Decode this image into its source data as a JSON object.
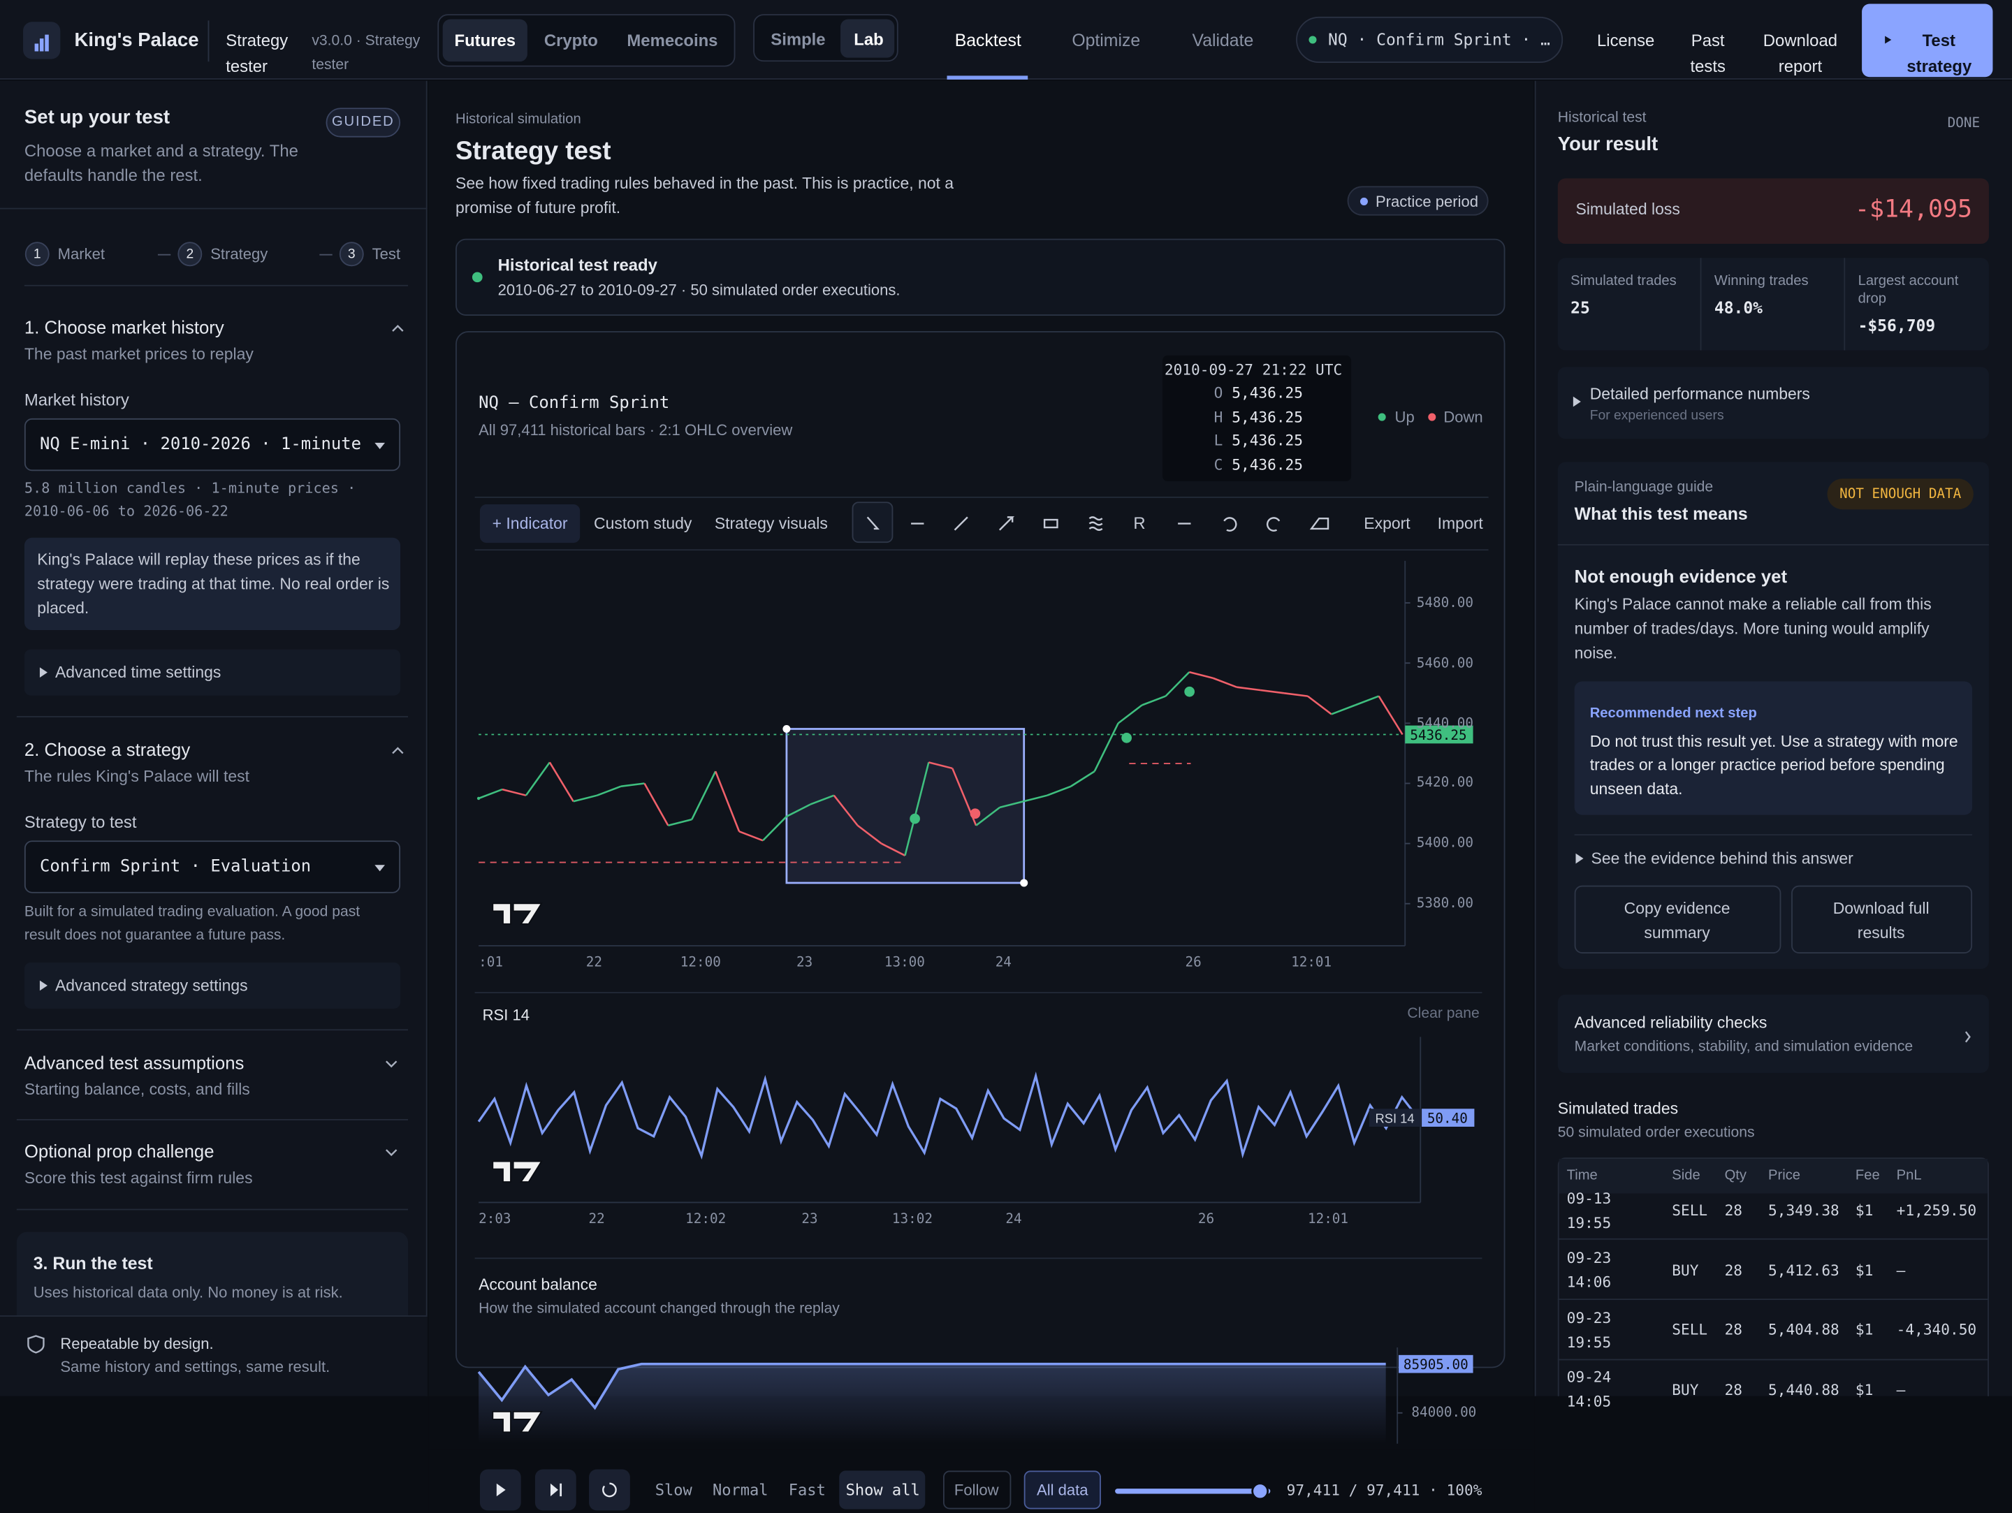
{
  "header": {
    "brand": "King's Palace",
    "product": "Strategy tester",
    "version": "v3.0.0 · Strategy tester",
    "markets": [
      "Futures",
      "Crypto",
      "Memecoins"
    ],
    "modes": [
      "Simple",
      "Lab"
    ],
    "tabs": [
      "Backtest",
      "Optimize",
      "Validate"
    ],
    "instrument": "NQ · Confirm Sprint · …",
    "links": [
      "License",
      "Past tests",
      "Download report"
    ],
    "cta": "Test strategy"
  },
  "setup": {
    "title": "Set up your test",
    "badge": "GUIDED",
    "description": "Choose a market and a strategy. The defaults handle the rest.",
    "steps": [
      {
        "number": "1",
        "label": "Market"
      },
      {
        "number": "2",
        "label": "Strategy"
      },
      {
        "number": "3",
        "label": "Test"
      }
    ],
    "market": {
      "title": "1. Choose market history",
      "subtitle": "The past market prices to replay",
      "field_label": "Market history",
      "selected": "NQ E-mini · 2010-2026 · 1-minute",
      "meta": "5.8 million candles · 1-minute prices · 2010-06-06 to 2026-06-22",
      "info": "King's Palace will replay these prices as if the strategy were trading at that time. No real order is placed.",
      "advanced": "Advanced time settings"
    },
    "strategy": {
      "title": "2. Choose a strategy",
      "subtitle": "The rules King's Palace will test",
      "field_label": "Strategy to test",
      "selected": "Confirm Sprint · Evaluation",
      "note": "Built for a simulated trading evaluation. A good past result does not guarantee a future pass.",
      "advanced": "Advanced strategy settings"
    },
    "assumptions": {
      "title": "Advanced test assumptions",
      "subtitle": "Starting balance, costs, and fills"
    },
    "challenge": {
      "title": "Optional prop challenge",
      "subtitle": "Score this test against firm rules"
    },
    "run": {
      "title": "3. Run the test",
      "subtitle": "Uses historical data only. No money is at risk."
    },
    "footer": {
      "title": "Repeatable by design.",
      "subtitle": "Same history and settings, same result."
    }
  },
  "main": {
    "eyebrow": "Historical simulation",
    "title": "Strategy test",
    "description": "See how fixed trading rules behaved in the past. This is practice, not a promise of future profit.",
    "badge": "Practice period",
    "status": {
      "title": "Historical test ready",
      "detail": "2010-06-27 to 2010-09-27 · 50 simulated order executions."
    },
    "chart": {
      "title": "NQ — Confirm Sprint",
      "subtitle": "All 97,411 historical bars · 2:1 OHLC overview",
      "tooltip": {
        "time": "2010-09-27 21:22 UTC",
        "rows": [
          {
            "key": "O",
            "value": "5,436.25"
          },
          {
            "key": "H",
            "value": "5,436.25"
          },
          {
            "key": "L",
            "value": "5,436.25"
          },
          {
            "key": "C",
            "value": "5,436.25"
          }
        ]
      },
      "legend": [
        {
          "name": "Up",
          "color": "#3fbf7f"
        },
        {
          "name": "Down",
          "color": "#f0606a"
        }
      ],
      "toolbar": [
        "+ Indicator",
        "Custom study",
        "Strategy visuals"
      ],
      "tool_r": "R",
      "actions": [
        "Export",
        "Import"
      ],
      "price": {
        "type": "line",
        "x_labels": [
          ":01",
          "22",
          "12:00",
          "23",
          "13:00",
          "24",
          "26",
          "12:01"
        ],
        "ylim": [
          5366,
          5494
        ],
        "yticks": [
          {
            "value": 5480,
            "label": "5480.00"
          },
          {
            "value": 5460,
            "label": "5460.00"
          },
          {
            "value": 5440,
            "label": "5440.00"
          },
          {
            "value": 5420,
            "label": "5420.00"
          },
          {
            "value": 5400,
            "label": "5400.00"
          },
          {
            "value": 5380,
            "label": "5380.00"
          }
        ],
        "values": [
          5415,
          5418,
          5416,
          5427,
          5414,
          5416,
          5419,
          5420,
          5406,
          5408,
          5424,
          5404,
          5401,
          5409,
          5413,
          5416,
          5406,
          5400,
          5396,
          5427,
          5425,
          5406,
          5412,
          5414,
          5416,
          5419,
          5424,
          5440,
          5446,
          5449,
          5457,
          5455,
          5452,
          5451,
          5450,
          5449,
          5443,
          5446,
          5449,
          5436.25
        ]
      },
      "rsi": {
        "type": "line",
        "name": "RSI 14",
        "clear": "Clear pane",
        "color": "#7f9cf5",
        "x_labels": [
          "2:03",
          "22",
          "12:02",
          "23",
          "13:02",
          "24",
          "26",
          "12:01"
        ],
        "ylim": [
          0,
          100
        ],
        "values": [
          48,
          62,
          35,
          70,
          41,
          55,
          66,
          30,
          58,
          72,
          44,
          39,
          63,
          51,
          27,
          68,
          57,
          42,
          74,
          36,
          60,
          49,
          33,
          65,
          53,
          40,
          71,
          45,
          29,
          62,
          56,
          38,
          67,
          50,
          43,
          76,
          34,
          59,
          47,
          64,
          31,
          55,
          69,
          41,
          52,
          37,
          61,
          73,
          28,
          57,
          46,
          66,
          39,
          54,
          70,
          35,
          58,
          44,
          63,
          50.4
        ],
        "last_label": "50.40"
      },
      "balance": {
        "type": "area",
        "title": "Account balance",
        "subtitle": "How the simulated account changed through the replay",
        "color": "#7f9cf5",
        "ylim": [
          82800,
          86550
        ],
        "yticks": [
          {
            "value": 84000,
            "label": "84000.00"
          }
        ],
        "values": [
          85600,
          84500,
          85800,
          84700,
          85300,
          84200,
          85700,
          85905,
          85905,
          85905,
          85905,
          85905,
          85905,
          85905,
          85905,
          85905,
          85905,
          85905,
          85905,
          85905,
          85905,
          85905,
          85905,
          85905,
          85905,
          85905,
          85905,
          85905,
          85905,
          85905,
          85905,
          85905,
          85905,
          85905,
          85905,
          85905,
          85905,
          85905,
          85905,
          85905
        ],
        "last_label": "85905.00"
      }
    },
    "controls": {
      "speeds": [
        "Slow",
        "Normal",
        "Fast",
        "Show all"
      ],
      "follow": "Follow",
      "range": "All data",
      "progress": "97,411 / 97,411 · 100%"
    }
  },
  "result": {
    "eyebrow": "Historical test",
    "title": "Your result",
    "status": "DONE",
    "loss_label": "Simulated loss",
    "loss": "-$14,095",
    "stats": [
      {
        "label": "Simulated trades",
        "value": "25"
      },
      {
        "label": "Winning trades",
        "value": "48.0%"
      },
      {
        "label": "Largest account drop",
        "value": "-$56,709"
      }
    ],
    "details": {
      "title": "Detailed performance numbers",
      "subtitle": "For experienced users"
    },
    "guide": {
      "eyebrow": "Plain-language guide",
      "title": "What this test means",
      "badge": "NOT ENOUGH DATA",
      "heading": "Not enough evidence yet",
      "text": "King's Palace cannot make a reliable call from this number of trades/days. More tuning would amplify noise.",
      "next_label": "Recommended next step",
      "next_text": "Do not trust this result yet. Use a strategy with more trades or a longer practice period before spending unseen data.",
      "evidence": "See the evidence behind this answer",
      "buttons": [
        "Copy evidence summary",
        "Download full results"
      ]
    },
    "reliability": {
      "title": "Advanced reliability checks",
      "subtitle": "Market conditions, stability, and simulation evidence"
    },
    "trades": {
      "title": "Simulated trades",
      "subtitle": "50 simulated order executions",
      "columns": [
        "Time",
        "Side",
        "Qty",
        "Price",
        "Fee",
        "PnL"
      ],
      "rows": [
        [
          "09-13 19:55",
          "SELL",
          "28",
          "5,349.38",
          "$1",
          "+1,259.50"
        ],
        [
          "09-23 14:06",
          "BUY",
          "28",
          "5,412.63",
          "$1",
          "—"
        ],
        [
          "09-23 19:55",
          "SELL",
          "28",
          "5,404.88",
          "$1",
          "-4,340.50"
        ],
        [
          "09-24 14:05",
          "BUY",
          "28",
          "5,440.88",
          "$1",
          "—"
        ]
      ]
    }
  }
}
